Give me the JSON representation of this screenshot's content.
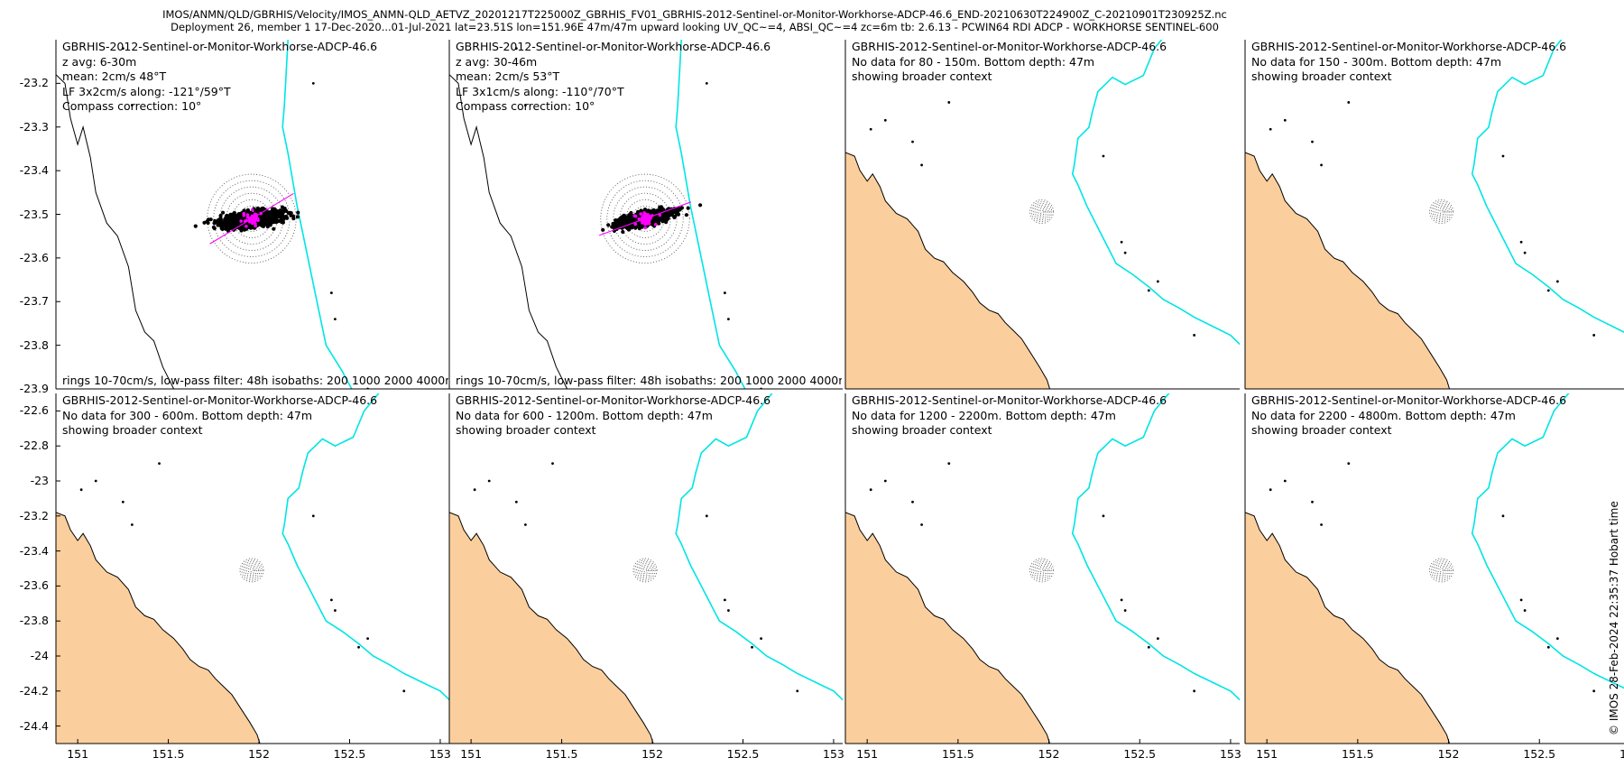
{
  "header": {
    "line1": "IMOS/ANMN/QLD/GBRHIS/Velocity/IMOS_ANMN-QLD_AETVZ_20201217T225000Z_GBRHIS_FV01_GBRHIS-2012-Sentinel-or-Monitor-Workhorse-ADCP-46.6_END-20210630T224900Z_C-20210901T230925Z.nc",
    "line2": "Deployment 26, member 1 17-Dec-2020...01-Jul-2021 lat=23.51S lon=151.96E 47m/47m upward looking UV_QC~=4, ABSI_QC~=4 zc=6m tb: 2.6.13 - PCWIN64 RDI ADCP - WORKHORSE SENTINEL-600"
  },
  "credit": "© IMOS 28-Feb-2024 22:35:37 Hobart time",
  "colors": {
    "land": "#fbcf9d",
    "isobath": "#00e5e5",
    "axis_line": "#ff00ff",
    "points": "#000000",
    "lowpass": "#ff00ff"
  },
  "chart_data": [
    {
      "type": "scatter",
      "title": "GBRHIS-2012-Sentinel-or-Monitor-Workhorse-ADCP-46.6",
      "lines": [
        "z avg: 6-30m",
        "mean: 2cm/s 48°T",
        "LF 3x2cm/s along: -121°/59°T",
        "Compass correction: 10°"
      ],
      "footer": "rings 10-70cm/s, low-pass filter: 48h isobaths: 200 1000 2000 4000m",
      "center": [
        151.96,
        -23.51
      ],
      "ring_speeds_cms": [
        10,
        20,
        30,
        40,
        50,
        60,
        70
      ],
      "ring_spacing_deg": 0.035,
      "ellipse_major_deg": 0.195,
      "ellipse_minor_deg": 0.042,
      "ellipse_tilt_deg": 8,
      "major_axis_bearing_deg": 59,
      "mean_offset_deg": [
        0.0,
        0.0
      ],
      "xlim": [
        150.88,
        153.05
      ],
      "ylim": [
        -23.9,
        -23.1
      ],
      "yticks": [
        -23.2,
        -23.3,
        -23.4,
        -23.5,
        -23.6,
        -23.7,
        -23.8,
        -23.9
      ],
      "xticks": []
    },
    {
      "type": "scatter",
      "title": "GBRHIS-2012-Sentinel-or-Monitor-Workhorse-ADCP-46.6",
      "lines": [
        "z avg: 30-46m",
        "mean: 2cm/s 53°T",
        "LF 3x1cm/s along: -110°/70°T",
        "Compass correction: 10°"
      ],
      "footer": "rings 10-70cm/s, low-pass filter: 48h isobaths: 200 1000 2000 4000m",
      "center": [
        151.96,
        -23.51
      ],
      "ring_speeds_cms": [
        10,
        20,
        30,
        40,
        50,
        60,
        70
      ],
      "ring_spacing_deg": 0.035,
      "ellipse_major_deg": 0.17,
      "ellipse_minor_deg": 0.035,
      "ellipse_tilt_deg": 12,
      "major_axis_bearing_deg": 70,
      "mean_offset_deg": [
        0.0,
        0.0
      ],
      "xlim": [
        150.88,
        153.05
      ],
      "ylim": [
        -23.9,
        -23.1
      ],
      "yticks": [],
      "xticks": []
    },
    {
      "type": "map",
      "title": "GBRHIS-2012-Sentinel-or-Monitor-Workhorse-ADCP-46.6",
      "lines": [
        "No data for 80 - 150m. Bottom depth: 47m",
        "showing broader context"
      ],
      "center": [
        151.96,
        -23.51
      ],
      "xlim": [
        150.88,
        153.05
      ],
      "ylim": [
        -24.5,
        -22.55
      ],
      "yticks": [],
      "xticks": []
    },
    {
      "type": "map",
      "title": "GBRHIS-2012-Sentinel-or-Monitor-Workhorse-ADCP-46.6",
      "lines": [
        "No data for 150 - 300m. Bottom depth: 47m",
        "showing broader context"
      ],
      "center": [
        151.96,
        -23.51
      ],
      "xlim": [
        150.88,
        153.05
      ],
      "ylim": [
        -24.5,
        -22.55
      ],
      "yticks": [],
      "xticks": []
    },
    {
      "type": "map",
      "title": "GBRHIS-2012-Sentinel-or-Monitor-Workhorse-ADCP-46.6",
      "lines": [
        "No data for 300 - 600m. Bottom depth: 47m",
        "showing broader context"
      ],
      "center": [
        151.96,
        -23.51
      ],
      "xlim": [
        150.88,
        153.05
      ],
      "ylim": [
        -24.5,
        -22.5
      ],
      "yticks": [
        -22.6,
        -22.8,
        -23,
        -23.2,
        -23.4,
        -23.6,
        -23.8,
        -24,
        -24.2,
        -24.4
      ],
      "xticks": [
        151,
        151.5,
        152,
        152.5,
        153
      ]
    },
    {
      "type": "map",
      "title": "GBRHIS-2012-Sentinel-or-Monitor-Workhorse-ADCP-46.6",
      "lines": [
        "No data for 600 - 1200m. Bottom depth: 47m",
        "showing broader context"
      ],
      "center": [
        151.96,
        -23.51
      ],
      "xlim": [
        150.88,
        153.05
      ],
      "ylim": [
        -24.5,
        -22.5
      ],
      "yticks": [],
      "xticks": [
        151,
        151.5,
        152,
        152.5,
        153
      ]
    },
    {
      "type": "map",
      "title": "GBRHIS-2012-Sentinel-or-Monitor-Workhorse-ADCP-46.6",
      "lines": [
        "No data for 1200 - 2200m. Bottom depth: 47m",
        "showing broader context"
      ],
      "center": [
        151.96,
        -23.51
      ],
      "xlim": [
        150.88,
        153.05
      ],
      "ylim": [
        -24.5,
        -22.5
      ],
      "yticks": [],
      "xticks": [
        151,
        151.5,
        152,
        152.5,
        153
      ]
    },
    {
      "type": "map",
      "title": "GBRHIS-2012-Sentinel-or-Monitor-Workhorse-ADCP-46.6",
      "lines": [
        "No data for 2200 - 4800m. Bottom depth: 47m",
        "showing broader context"
      ],
      "center": [
        151.96,
        -23.51
      ],
      "xlim": [
        150.88,
        153.05
      ],
      "ylim": [
        -24.5,
        -22.5
      ],
      "yticks": [],
      "xticks": [
        151,
        151.5,
        152,
        152.5,
        153
      ]
    }
  ]
}
